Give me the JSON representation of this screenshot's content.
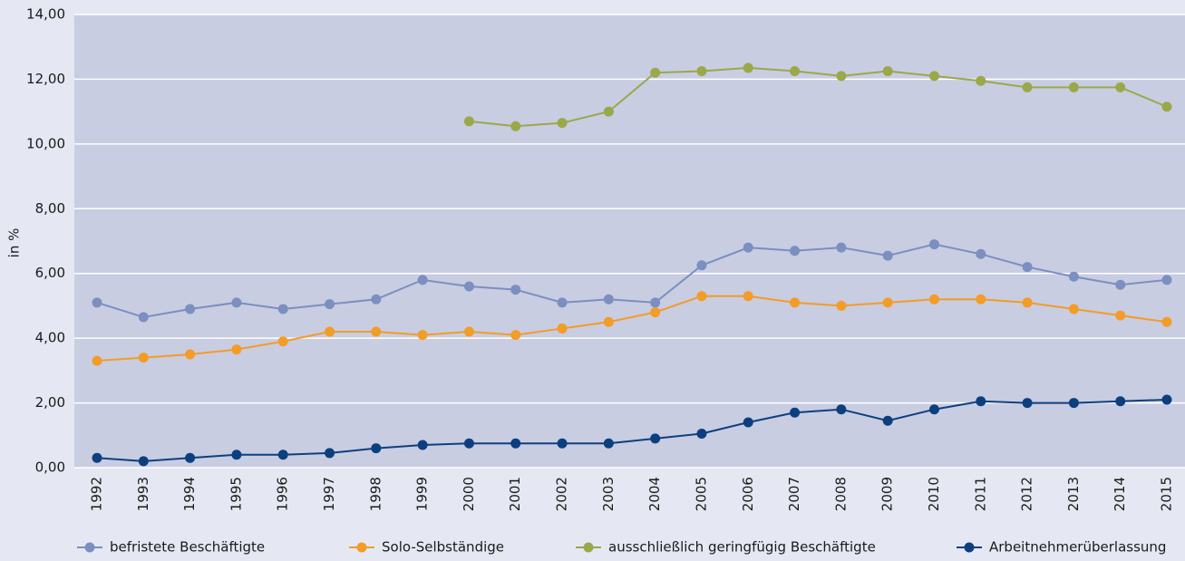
{
  "chart_data": {
    "type": "line",
    "ylabel": "in %",
    "categories": [
      "1992",
      "1993",
      "1994",
      "1995",
      "1996",
      "1997",
      "1998",
      "1999",
      "2000",
      "2001",
      "2002",
      "2003",
      "2004",
      "2005",
      "2006",
      "2007",
      "2008",
      "2009",
      "2010",
      "2011",
      "2012",
      "2013",
      "2014",
      "2015"
    ],
    "series": [
      {
        "name": "befristete Beschäftigte",
        "color": "#7b8fc0",
        "values": [
          5.1,
          4.65,
          4.9,
          5.1,
          4.9,
          5.05,
          5.2,
          5.8,
          5.6,
          5.5,
          5.1,
          5.2,
          5.1,
          6.25,
          6.8,
          6.7,
          6.8,
          6.55,
          6.9,
          6.6,
          6.2,
          5.9,
          5.65,
          5.8
        ]
      },
      {
        "name": "Solo-Selbständige",
        "color": "#f39c26",
        "values": [
          3.3,
          3.4,
          3.5,
          3.65,
          3.9,
          4.2,
          4.2,
          4.1,
          4.2,
          4.1,
          4.3,
          4.5,
          4.8,
          5.3,
          5.3,
          5.1,
          5.0,
          5.1,
          5.2,
          5.2,
          5.1,
          4.9,
          4.7,
          4.5
        ]
      },
      {
        "name": "ausschließlich geringfügig Beschäftigte",
        "color": "#9aa84a",
        "values": [
          null,
          null,
          null,
          null,
          null,
          null,
          null,
          null,
          10.7,
          10.55,
          10.65,
          11.0,
          12.2,
          12.25,
          12.35,
          12.25,
          12.1,
          12.25,
          12.1,
          11.95,
          11.75,
          11.75,
          11.75,
          11.15
        ]
      },
      {
        "name": "Arbeitnehmerüberlassung",
        "color": "#0d3f7f",
        "values": [
          0.3,
          0.2,
          0.3,
          0.4,
          0.4,
          0.45,
          0.6,
          0.7,
          0.75,
          0.75,
          0.75,
          0.75,
          0.9,
          1.05,
          1.4,
          1.7,
          1.8,
          1.45,
          1.8,
          2.05,
          2.0,
          2.0,
          2.05,
          2.1
        ]
      }
    ],
    "ylim": [
      0,
      14
    ],
    "yticks": [
      {
        "value": 0,
        "label": "0,00"
      },
      {
        "value": 2,
        "label": "2,00"
      },
      {
        "value": 4,
        "label": "4,00"
      },
      {
        "value": 6,
        "label": "6,00"
      },
      {
        "value": 8,
        "label": "8,00"
      },
      {
        "value": 10,
        "label": "10,00"
      },
      {
        "value": 12,
        "label": "12,00"
      },
      {
        "value": 14,
        "label": "14,00"
      }
    ],
    "grid": true,
    "legend": "bottom"
  }
}
